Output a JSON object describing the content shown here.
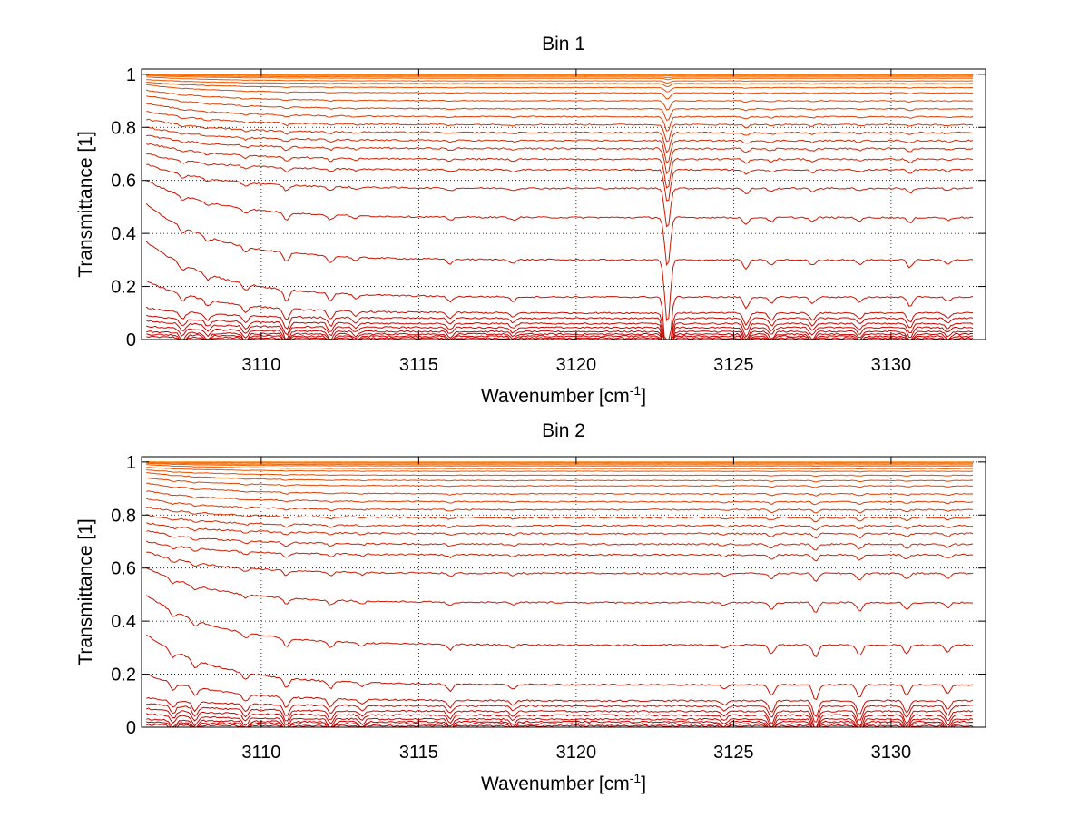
{
  "chart_data": [
    {
      "type": "line",
      "title": "Bin 1",
      "xlabel": "Wavenumber [cm",
      "xlabel_sup": "-1",
      "xlabel_tail": "]",
      "ylabel": "Transmittance [1]",
      "xlim": [
        3106.2,
        3133
      ],
      "ylim": [
        0,
        1.02
      ],
      "xticks": [
        3110,
        3115,
        3120,
        3125,
        3130
      ],
      "xtick_labels": [
        "3110",
        "3115",
        "3120",
        "3125",
        "3130"
      ],
      "yticks": [
        0,
        0.2,
        0.4,
        0.6,
        0.8,
        1
      ],
      "ytick_labels": [
        "0",
        "0.2",
        "0.4",
        "0.6",
        "0.8",
        "1"
      ],
      "grid": true,
      "grid_style": "dotted",
      "colors": {
        "low": "#c40000",
        "high": "#ff7a00"
      },
      "series_baselines": [
        0.005,
        0.012,
        0.02,
        0.03,
        0.045,
        0.06,
        0.08,
        0.1,
        0.16,
        0.3,
        0.46,
        0.57,
        0.64,
        0.68,
        0.72,
        0.75,
        0.78,
        0.81,
        0.84,
        0.87,
        0.9,
        0.93,
        0.95,
        0.965,
        0.975,
        0.985,
        0.99,
        0.995,
        0.998,
        1.0
      ],
      "series_start_values": [
        0.01,
        0.02,
        0.03,
        0.05,
        0.07,
        0.09,
        0.12,
        0.22,
        0.37,
        0.51,
        0.6,
        0.66,
        0.7,
        0.74,
        0.77,
        0.8,
        0.83,
        0.86,
        0.89,
        0.92,
        0.94,
        0.96,
        0.97,
        0.98,
        0.99,
        0.995,
        0.998,
        1.0,
        1.0,
        1.0
      ],
      "absorption_lines": [
        {
          "x": 3107.5,
          "depth": 0.03
        },
        {
          "x": 3108.3,
          "depth": 0.025
        },
        {
          "x": 3109.5,
          "depth": 0.03
        },
        {
          "x": 3110.8,
          "depth": 0.05
        },
        {
          "x": 3112.2,
          "depth": 0.035
        },
        {
          "x": 3113.0,
          "depth": 0.02
        },
        {
          "x": 3116.0,
          "depth": 0.025
        },
        {
          "x": 3118.0,
          "depth": 0.02
        },
        {
          "x": 3122.9,
          "depth": 0.35
        },
        {
          "x": 3125.4,
          "depth": 0.05
        },
        {
          "x": 3126.2,
          "depth": 0.03
        },
        {
          "x": 3127.5,
          "depth": 0.03
        },
        {
          "x": 3129.0,
          "depth": 0.025
        },
        {
          "x": 3130.6,
          "depth": 0.04
        },
        {
          "x": 3131.8,
          "depth": 0.02
        }
      ]
    },
    {
      "type": "line",
      "title": "Bin 2",
      "xlabel": "Wavenumber [cm",
      "xlabel_sup": "-1",
      "xlabel_tail": "]",
      "ylabel": "Transmittance [1]",
      "xlim": [
        3106.2,
        3133
      ],
      "ylim": [
        0,
        1.02
      ],
      "xticks": [
        3110,
        3115,
        3120,
        3125,
        3130
      ],
      "xtick_labels": [
        "3110",
        "3115",
        "3120",
        "3125",
        "3130"
      ],
      "yticks": [
        0,
        0.2,
        0.4,
        0.6,
        0.8,
        1
      ],
      "ytick_labels": [
        "0",
        "0.2",
        "0.4",
        "0.6",
        "0.8",
        "1"
      ],
      "grid": true,
      "grid_style": "dotted",
      "colors": {
        "low": "#c40000",
        "high": "#ff7a00"
      },
      "series_baselines": [
        0.005,
        0.012,
        0.02,
        0.03,
        0.045,
        0.06,
        0.08,
        0.1,
        0.16,
        0.31,
        0.47,
        0.58,
        0.65,
        0.69,
        0.73,
        0.76,
        0.79,
        0.82,
        0.85,
        0.88,
        0.91,
        0.93,
        0.95,
        0.965,
        0.975,
        0.985,
        0.99,
        0.995,
        0.998,
        1.0
      ],
      "series_start_values": [
        0.01,
        0.02,
        0.03,
        0.05,
        0.07,
        0.09,
        0.11,
        0.2,
        0.35,
        0.5,
        0.6,
        0.66,
        0.7,
        0.74,
        0.77,
        0.8,
        0.83,
        0.86,
        0.89,
        0.92,
        0.94,
        0.96,
        0.97,
        0.98,
        0.99,
        0.995,
        0.998,
        1.0,
        1.0,
        1.0
      ],
      "absorption_lines": [
        {
          "x": 3107.2,
          "depth": 0.03
        },
        {
          "x": 3107.9,
          "depth": 0.035
        },
        {
          "x": 3109.5,
          "depth": 0.03
        },
        {
          "x": 3110.8,
          "depth": 0.045
        },
        {
          "x": 3112.2,
          "depth": 0.035
        },
        {
          "x": 3113.2,
          "depth": 0.02
        },
        {
          "x": 3116.0,
          "depth": 0.03
        },
        {
          "x": 3118.0,
          "depth": 0.02
        },
        {
          "x": 3124.7,
          "depth": 0.02
        },
        {
          "x": 3126.2,
          "depth": 0.05
        },
        {
          "x": 3127.6,
          "depth": 0.07
        },
        {
          "x": 3129.0,
          "depth": 0.06
        },
        {
          "x": 3130.5,
          "depth": 0.05
        },
        {
          "x": 3131.8,
          "depth": 0.04
        }
      ]
    }
  ]
}
